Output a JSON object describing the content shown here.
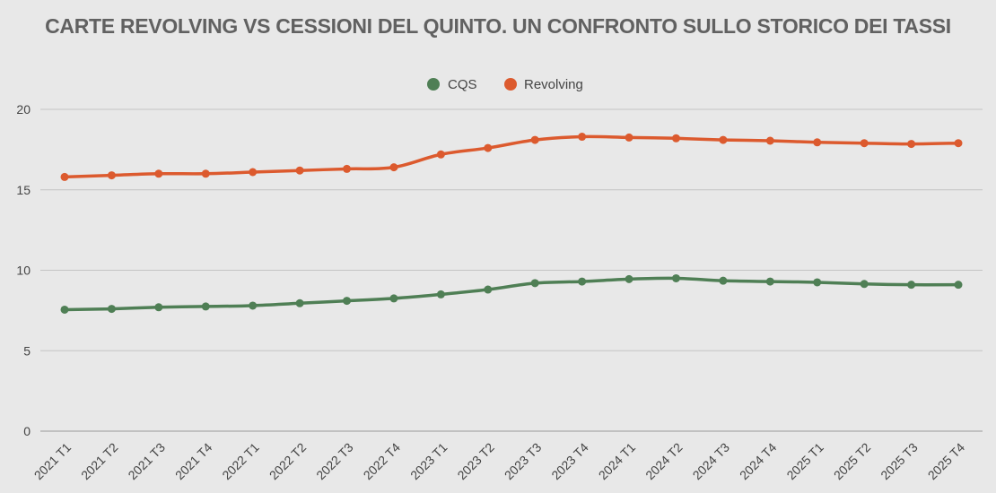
{
  "title": "CARTE REVOLVING VS CESSIONI DEL QUINTO. UN CONFRONTO SULLO STORICO DEI TASSI",
  "chart_data": {
    "type": "line",
    "title": "CARTE REVOLVING VS CESSIONI DEL QUINTO. UN CONFRONTO SULLO STORICO DEI TASSI",
    "xlabel": "",
    "ylabel": "",
    "categories": [
      "2021 T1",
      "2021 T2",
      "2021 T3",
      "2021 T4",
      "2022 T1",
      "2022 T2",
      "2022 T3",
      "2022 T4",
      "2023 T1",
      "2023 T2",
      "2023 T3",
      "2023 T4",
      "2024 T1",
      "2024 T2",
      "2024 T3",
      "2024 T4",
      "2025 T1",
      "2025 T2",
      "2025 T3",
      "2025 T4"
    ],
    "series": [
      {
        "name": "CQS",
        "color": "#4f7f55",
        "values": [
          7.55,
          7.6,
          7.7,
          7.75,
          7.8,
          7.95,
          8.1,
          8.25,
          8.5,
          8.8,
          9.2,
          9.3,
          9.45,
          9.5,
          9.35,
          9.3,
          9.25,
          9.15,
          9.1,
          9.1
        ]
      },
      {
        "name": "Revolving",
        "color": "#dc5a2e",
        "values": [
          15.8,
          15.9,
          16.0,
          16.0,
          16.1,
          16.2,
          16.3,
          16.4,
          17.2,
          17.6,
          18.1,
          18.3,
          18.25,
          18.2,
          18.1,
          18.05,
          17.95,
          17.9,
          17.85,
          17.9
        ]
      }
    ],
    "ylim": [
      0,
      20
    ],
    "yticks": [
      0,
      5,
      10,
      15,
      20
    ],
    "grid": true,
    "legend": "top-center"
  }
}
